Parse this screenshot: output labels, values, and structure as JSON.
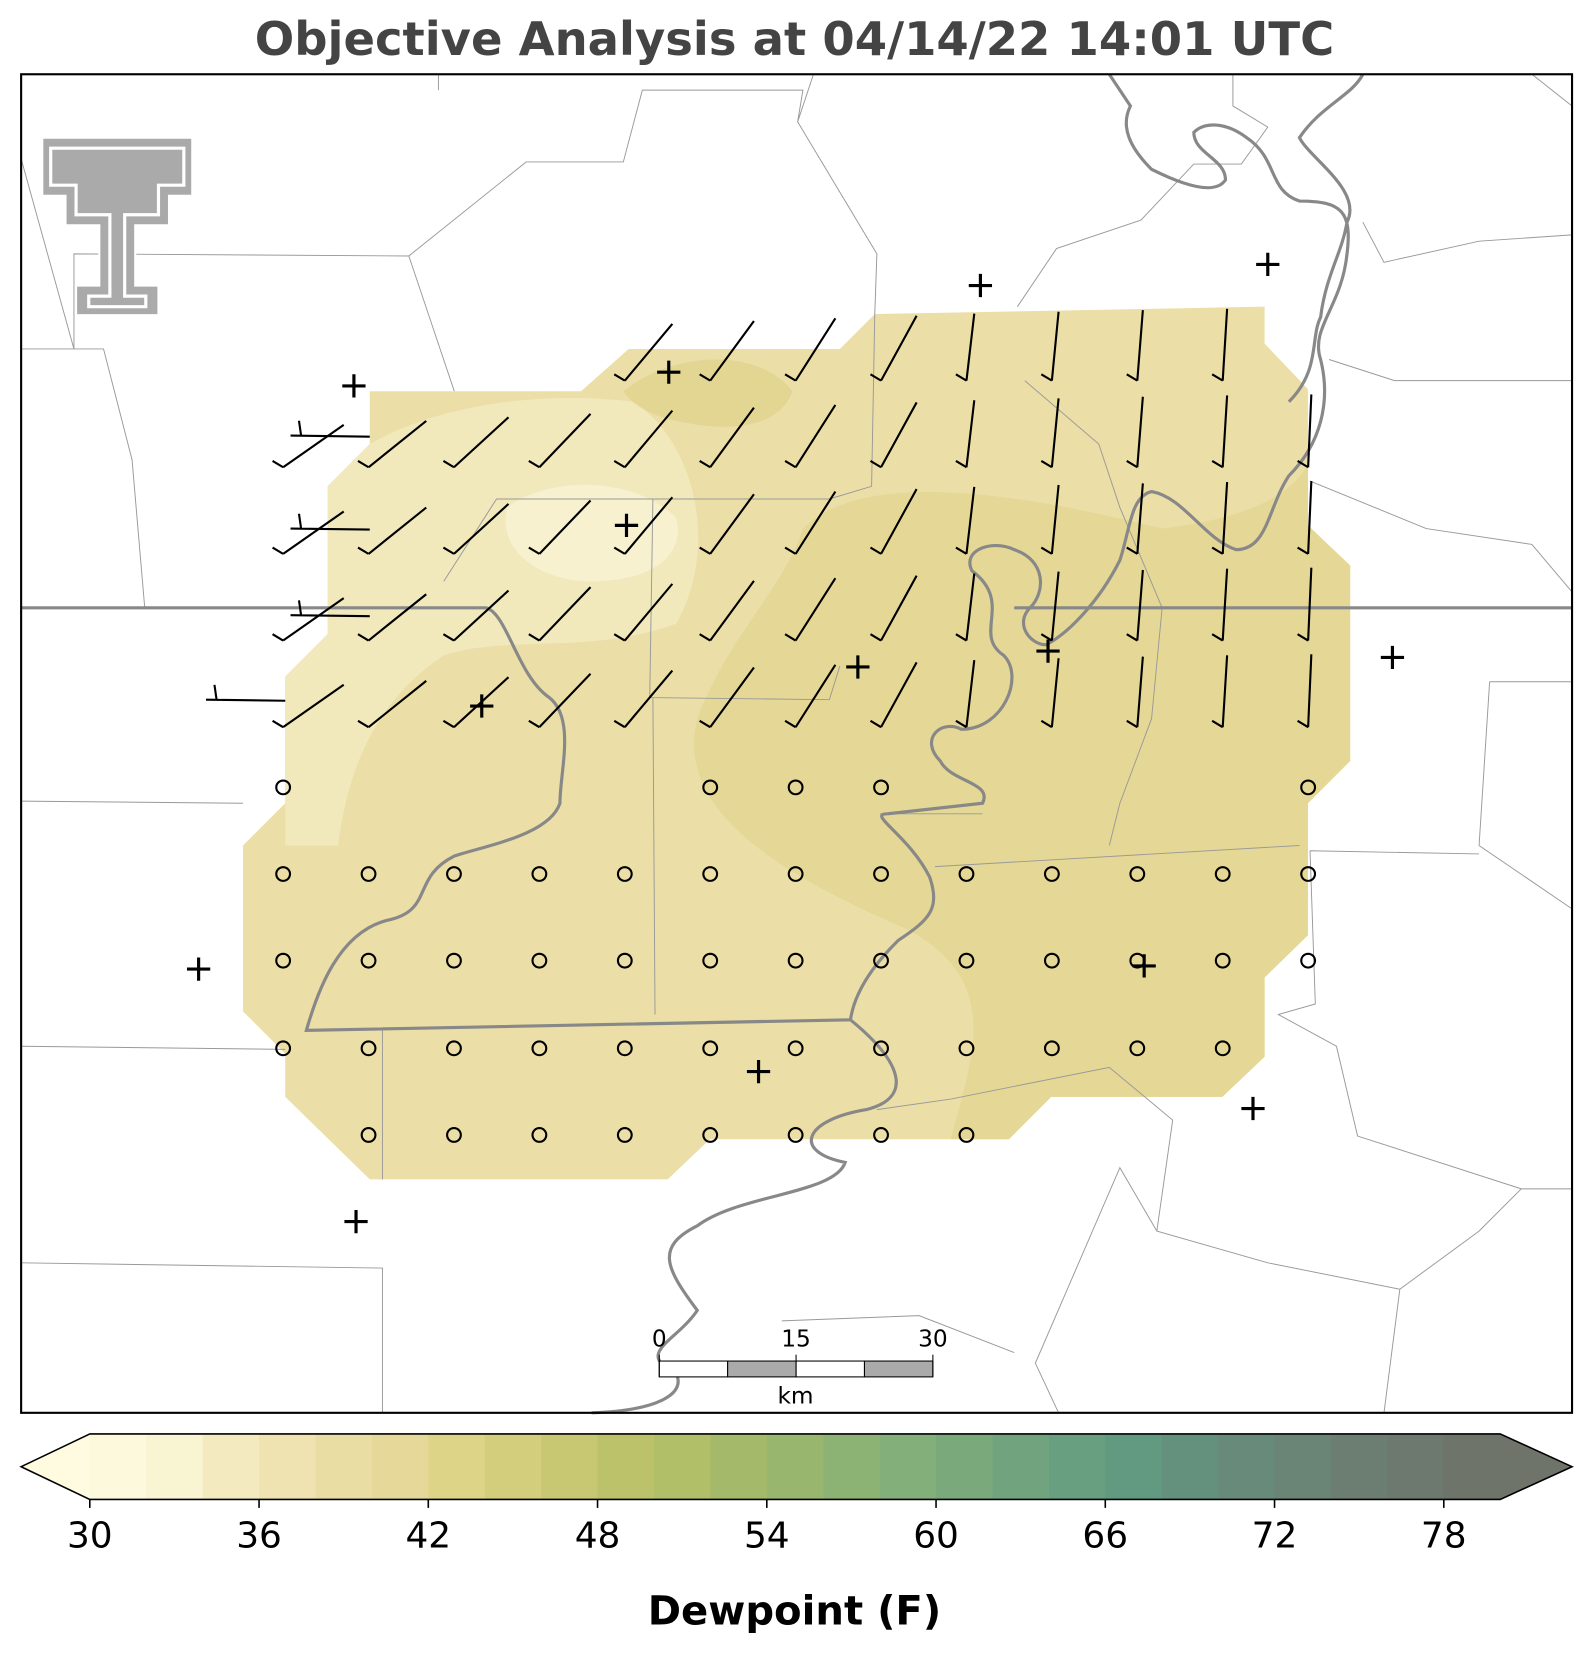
{
  "chart_data": {
    "type": "map",
    "title": "Objective Analysis at 04/14/22 14:01 UTC",
    "colorbar": {
      "label": "Dewpoint (F)",
      "lim": [
        30,
        80
      ],
      "ticks": [
        30,
        36,
        42,
        48,
        54,
        60,
        66,
        72,
        78
      ],
      "colors": [
        "#fdf9dc",
        "#f9f4d2",
        "#f4eac0",
        "#efe3b2",
        "#eadda4",
        "#e5d898",
        "#ddd488",
        "#d3ce7c",
        "#c9c872",
        "#bcc26a",
        "#b1bf68",
        "#a4ba6a",
        "#99b66e",
        "#8db374",
        "#83b07a",
        "#7aa97c",
        "#71a47e",
        "#689f80",
        "#619a80",
        "#64917e",
        "#688a7a",
        "#6a8476",
        "#6c7e72",
        "#6d786e",
        "#6e746a"
      ],
      "under_color": "#fffbe0",
      "over_color": "#6e746a"
    },
    "scale_bar": {
      "ticks": [
        0,
        15,
        30
      ],
      "unit": "km"
    }
  }
}
